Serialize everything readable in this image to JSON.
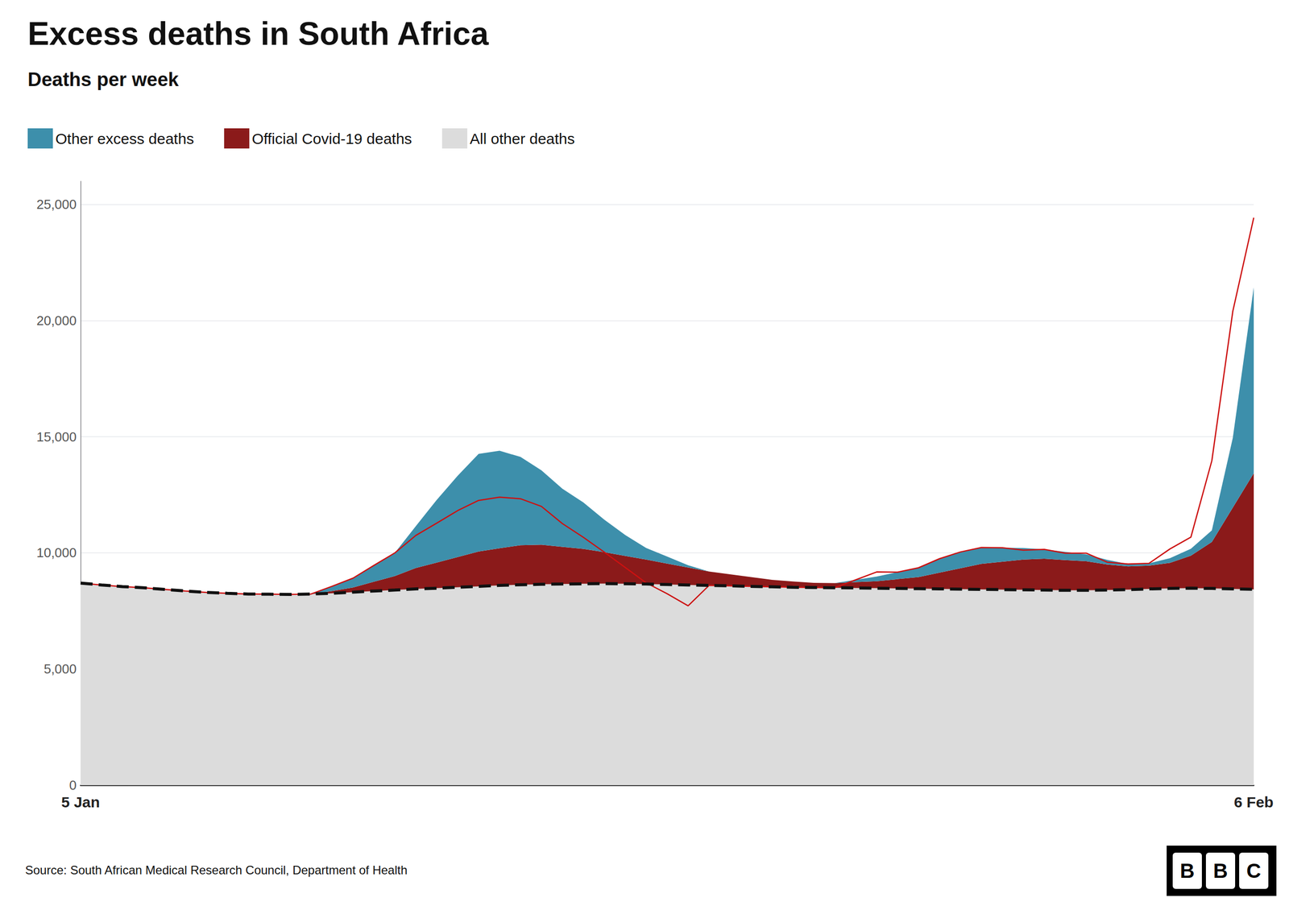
{
  "chart_data": {
    "type": "area",
    "title": "Excess deaths in South Africa",
    "subtitle": "Deaths per week",
    "source": "Source: South African Medical Research Council, Department of Health",
    "logo": "BBC",
    "categories": [
      "5 Jan",
      null,
      null,
      null,
      null,
      null,
      null,
      null,
      null,
      null,
      null,
      null,
      null,
      null,
      null,
      null,
      null,
      null,
      null,
      null,
      null,
      null,
      null,
      null,
      null,
      null,
      null,
      null,
      null,
      null,
      null,
      null,
      null,
      null,
      null,
      null,
      null,
      null,
      null,
      null,
      null,
      null,
      null,
      null,
      null,
      null,
      null,
      null,
      null,
      null,
      null,
      null,
      null,
      null,
      null,
      null,
      "6 Feb"
    ],
    "series": [
      {
        "name": "All other deaths",
        "type": "area",
        "color": "#DCDCDC",
        "values": [
          8700,
          8620,
          8550,
          8500,
          8430,
          8360,
          8300,
          8260,
          8230,
          8220,
          8210,
          8230,
          8260,
          8310,
          8360,
          8400,
          8450,
          8480,
          8520,
          8560,
          8600,
          8630,
          8650,
          8660,
          8670,
          8680,
          8670,
          8660,
          8640,
          8620,
          8600,
          8580,
          8560,
          8540,
          8520,
          8510,
          8500,
          8490,
          8480,
          8470,
          8460,
          8450,
          8440,
          8430,
          8420,
          8410,
          8400,
          8390,
          8390,
          8400,
          8420,
          8450,
          8470,
          8480,
          8470,
          8450,
          8430
        ]
      },
      {
        "name": "Official Covid-19 deaths",
        "type": "area",
        "color": "#8B1A1A",
        "values": [
          0,
          0,
          0,
          0,
          0,
          0,
          0,
          0,
          0,
          0,
          0,
          0,
          100,
          200,
          400,
          600,
          900,
          1100,
          1300,
          1500,
          1600,
          1700,
          1700,
          1600,
          1500,
          1350,
          1200,
          1050,
          900,
          750,
          600,
          500,
          400,
          300,
          250,
          200,
          200,
          250,
          300,
          400,
          500,
          700,
          900,
          1100,
          1200,
          1300,
          1350,
          1300,
          1250,
          1100,
          1000,
          1000,
          1100,
          1400,
          2000,
          3500,
          5000
        ]
      },
      {
        "name": "Other excess deaths",
        "type": "area",
        "color": "#3D8FAB",
        "values": [
          0,
          0,
          0,
          0,
          0,
          0,
          0,
          0,
          0,
          0,
          0,
          0,
          200,
          400,
          700,
          1000,
          1800,
          2700,
          3500,
          4200,
          4200,
          3800,
          3200,
          2500,
          2000,
          1400,
          900,
          500,
          300,
          100,
          0,
          0,
          0,
          0,
          0,
          0,
          0,
          100,
          200,
          300,
          400,
          600,
          700,
          700,
          600,
          500,
          400,
          350,
          300,
          200,
          100,
          100,
          200,
          300,
          500,
          3000,
          8000
        ]
      },
      {
        "type": "line",
        "color": "#111111",
        "line_style": "dashed",
        "values": [
          8700,
          8620,
          8550,
          8500,
          8430,
          8360,
          8300,
          8260,
          8230,
          8220,
          8210,
          8230,
          8260,
          8310,
          8360,
          8400,
          8450,
          8480,
          8520,
          8560,
          8600,
          8630,
          8650,
          8660,
          8670,
          8680,
          8670,
          8660,
          8640,
          8620,
          8600,
          8580,
          8560,
          8540,
          8520,
          8510,
          8500,
          8490,
          8480,
          8470,
          8460,
          8450,
          8440,
          8430,
          8420,
          8410,
          8400,
          8390,
          8390,
          8400,
          8420,
          8450,
          8470,
          8480,
          8470,
          8450,
          8430
        ]
      },
      {
        "type": "line",
        "color": "#CC1111",
        "line_style": "solid",
        "values": [
          8700,
          8620,
          8550,
          8500,
          8430,
          8360,
          8300,
          8260,
          8230,
          8220,
          8210,
          8230,
          8560,
          8910,
          9460,
          10000,
          10750,
          11280,
          11820,
          12260,
          12400,
          12330,
          12000,
          11260,
          10670,
          10030,
          9370,
          8710,
          8240,
          7720,
          8600,
          8580,
          8560,
          8540,
          8520,
          8510,
          8500,
          8840,
          9180,
          9170,
          9360,
          9750,
          10040,
          10230,
          10220,
          10120,
          10150,
          9990,
          9990,
          9600,
          9520,
          9550,
          10170,
          10680,
          13970,
          20400,
          24430
        ]
      }
    ],
    "stacked": true,
    "ylim": [
      0,
      26000
    ],
    "yticks": [
      0,
      {
        "value": 5000,
        "label": "5,000"
      },
      {
        "value": 10000,
        "label": "10,000"
      },
      {
        "value": 15000,
        "label": "15,000"
      },
      {
        "value": 20000,
        "label": "20,000"
      },
      {
        "value": 25000,
        "label": "25,000"
      }
    ],
    "grid": true,
    "legend": "top-left"
  }
}
